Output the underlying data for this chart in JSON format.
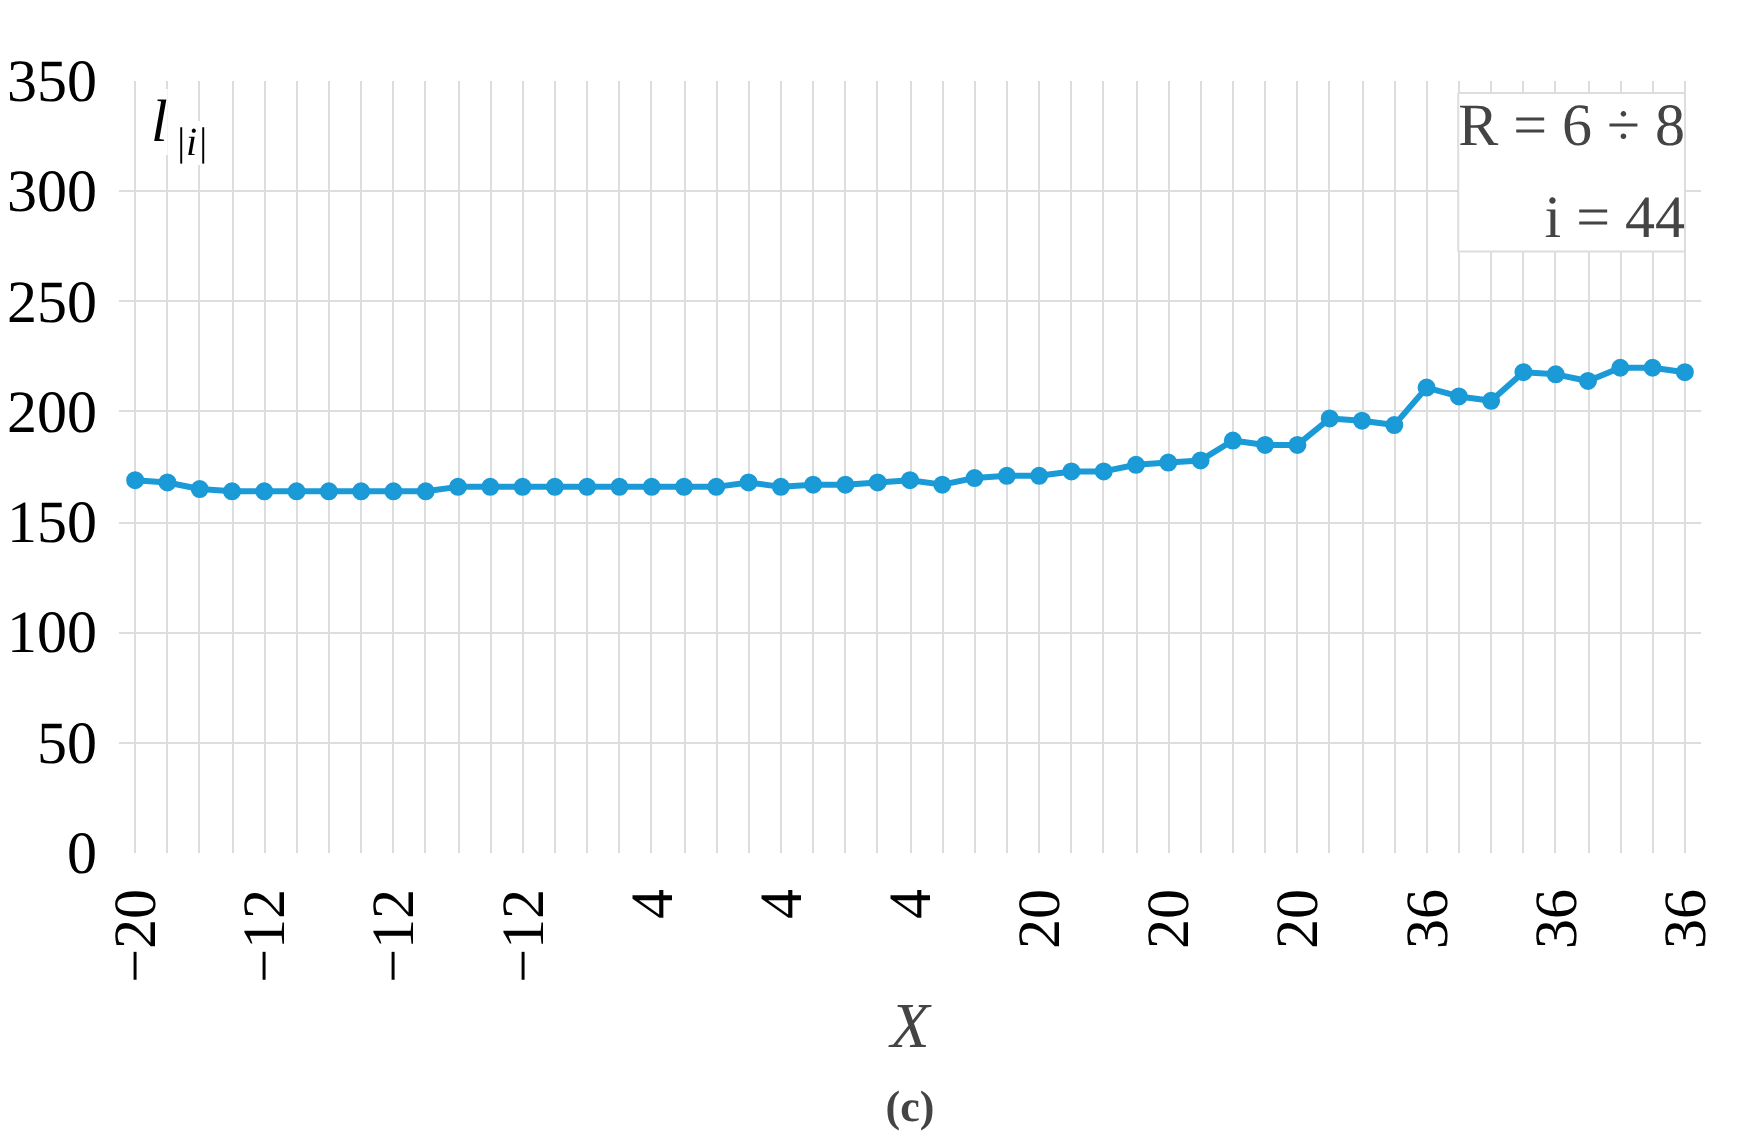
{
  "chart_data": {
    "type": "line",
    "title": "(c)",
    "xlabel": "X",
    "ylabel": "l$_{|i|}$",
    "annotations": [
      "R = 6 ÷ 8",
      "i = 44"
    ],
    "categories": [
      "−20",
      null,
      null,
      null,
      "−12",
      null,
      null,
      null,
      "−12",
      null,
      null,
      null,
      "−12",
      null,
      null,
      null,
      "4",
      null,
      null,
      null,
      "4",
      null,
      null,
      null,
      "4",
      null,
      null,
      null,
      "20",
      null,
      null,
      null,
      "20",
      null,
      null,
      null,
      "20",
      null,
      null,
      null,
      "36",
      null,
      null,
      null,
      "36",
      null,
      null,
      null,
      "36"
    ],
    "series": [
      {
        "color": "#1a9ad6",
        "values": [
          169,
          168,
          165,
          164,
          164,
          164,
          164,
          164,
          164,
          164,
          166,
          166,
          166,
          166,
          166,
          166,
          166,
          166,
          166,
          168,
          166,
          167,
          167,
          168,
          169,
          167,
          170,
          171,
          171,
          173,
          173,
          176,
          177,
          178,
          187,
          185,
          185,
          197,
          196,
          194,
          211,
          207,
          205,
          218,
          217,
          214,
          220,
          220,
          218
        ]
      }
    ],
    "ylim": [
      0,
      350
    ],
    "yticks": [
      0,
      50,
      100,
      150,
      200,
      250,
      300,
      350
    ],
    "grid": true,
    "marker": "circle",
    "line_style": "solid"
  }
}
